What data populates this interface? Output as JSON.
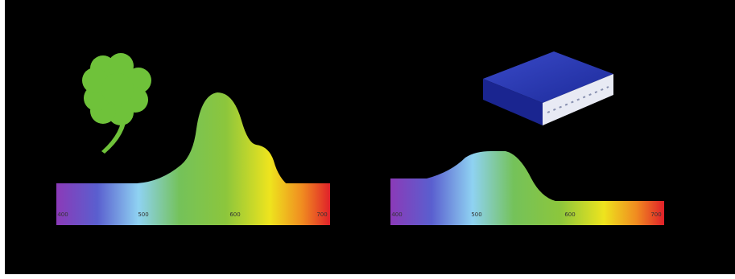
{
  "left_panel": {
    "axis_ticks": [
      "400",
      "500",
      "600",
      "700"
    ]
  },
  "right_panel": {
    "axis_ticks": [
      "400",
      "500",
      "600",
      "700"
    ]
  }
}
